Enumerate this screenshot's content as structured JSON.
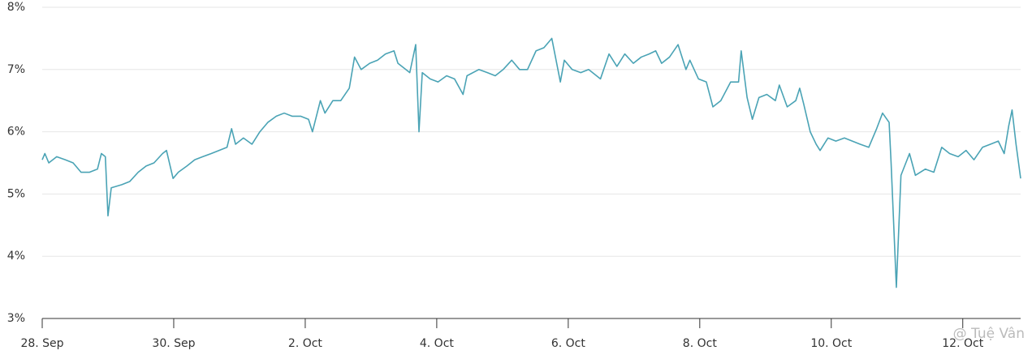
{
  "chart_data": {
    "type": "line",
    "x": [
      0,
      0.04,
      0.1,
      0.22,
      0.35,
      0.47,
      0.59,
      0.72,
      0.84,
      0.9,
      0.96,
      1.0,
      1.05,
      1.21,
      1.33,
      1.46,
      1.58,
      1.7,
      1.83,
      1.89,
      1.99,
      2.07,
      2.2,
      2.32,
      2.44,
      2.57,
      2.69,
      2.81,
      2.88,
      2.94,
      3.06,
      3.19,
      3.31,
      3.43,
      3.56,
      3.68,
      3.8,
      3.93,
      4.05,
      4.11,
      4.23,
      4.3,
      4.42,
      4.54,
      4.67,
      4.75,
      4.85,
      4.98,
      5.1,
      5.22,
      5.35,
      5.41,
      5.53,
      5.59,
      5.68,
      5.73,
      5.78,
      5.9,
      6.02,
      6.15,
      6.27,
      6.4,
      6.46,
      6.64,
      6.77,
      6.89,
      7.01,
      7.14,
      7.26,
      7.38,
      7.51,
      7.63,
      7.75,
      7.88,
      7.94,
      8.06,
      8.19,
      8.31,
      8.43,
      8.49,
      8.62,
      8.74,
      8.86,
      8.99,
      9.11,
      9.23,
      9.33,
      9.42,
      9.54,
      9.67,
      9.79,
      9.85,
      9.98,
      10.1,
      10.2,
      10.32,
      10.47,
      10.59,
      10.63,
      10.72,
      10.8,
      10.9,
      11.02,
      11.15,
      11.21,
      11.33,
      11.46,
      11.52,
      11.58,
      11.68,
      11.77,
      11.83,
      11.95,
      12.07,
      12.2,
      12.32,
      12.44,
      12.57,
      12.69,
      12.78,
      12.88,
      12.91,
      12.99,
      13.06,
      13.19,
      13.28,
      13.43,
      13.56,
      13.68,
      13.8,
      13.93,
      14.05,
      14.17,
      14.3,
      14.42,
      14.54,
      14.63,
      14.7,
      14.75,
      14.81,
      14.88
    ],
    "series": [
      {
        "color": "#4aa3b5",
        "values": [
          5.55,
          5.65,
          5.5,
          5.6,
          5.55,
          5.5,
          5.35,
          5.35,
          5.4,
          5.65,
          5.6,
          4.65,
          5.1,
          5.15,
          5.2,
          5.35,
          5.45,
          5.5,
          5.65,
          5.7,
          5.25,
          5.35,
          5.45,
          5.55,
          5.6,
          5.65,
          5.7,
          5.75,
          6.05,
          5.8,
          5.9,
          5.8,
          6.0,
          6.15,
          6.25,
          6.3,
          6.25,
          6.25,
          6.2,
          6.0,
          6.5,
          6.3,
          6.5,
          6.5,
          6.7,
          7.2,
          7.0,
          7.1,
          7.15,
          7.25,
          7.3,
          7.1,
          7.0,
          6.95,
          7.4,
          6.0,
          6.95,
          6.85,
          6.8,
          6.9,
          6.85,
          6.6,
          6.9,
          7.0,
          6.95,
          6.9,
          7.0,
          7.15,
          7.0,
          7.0,
          7.3,
          7.35,
          7.5,
          6.8,
          7.15,
          7.0,
          6.95,
          7.0,
          6.9,
          6.85,
          7.25,
          7.05,
          7.25,
          7.1,
          7.2,
          7.25,
          7.3,
          7.1,
          7.2,
          7.4,
          7.0,
          7.15,
          6.85,
          6.8,
          6.4,
          6.5,
          6.8,
          6.8,
          7.3,
          6.55,
          6.2,
          6.55,
          6.6,
          6.5,
          6.75,
          6.4,
          6.5,
          6.7,
          6.45,
          6.0,
          5.8,
          5.7,
          5.9,
          5.85,
          5.9,
          5.85,
          5.8,
          5.75,
          6.05,
          6.3,
          6.15,
          5.5,
          3.5,
          5.3,
          5.65,
          5.3,
          5.4,
          5.35,
          5.75,
          5.65,
          5.6,
          5.7,
          5.55,
          5.75,
          5.8,
          5.85,
          5.65,
          6.1,
          6.35,
          5.8,
          5.25
        ]
      }
    ],
    "xlim": [
      0,
      14.88
    ],
    "xticks": [
      {
        "value": 0,
        "label": "28. Sep"
      },
      {
        "value": 2,
        "label": "30. Sep"
      },
      {
        "value": 4,
        "label": "2. Oct"
      },
      {
        "value": 6,
        "label": "4. Oct"
      },
      {
        "value": 8,
        "label": "6. Oct"
      },
      {
        "value": 10,
        "label": "8. Oct"
      },
      {
        "value": 12,
        "label": "10. Oct"
      },
      {
        "value": 14,
        "label": "12. Oct"
      }
    ],
    "ylim": [
      3,
      8
    ],
    "yticks": [
      {
        "value": 3,
        "label": "3%"
      },
      {
        "value": 4,
        "label": "4%"
      },
      {
        "value": 5,
        "label": "5%"
      },
      {
        "value": 6,
        "label": "6%"
      },
      {
        "value": 7,
        "label": "7%"
      },
      {
        "value": 8,
        "label": "8%"
      }
    ],
    "grid": true,
    "watermark": "@ Tuệ Vân"
  }
}
